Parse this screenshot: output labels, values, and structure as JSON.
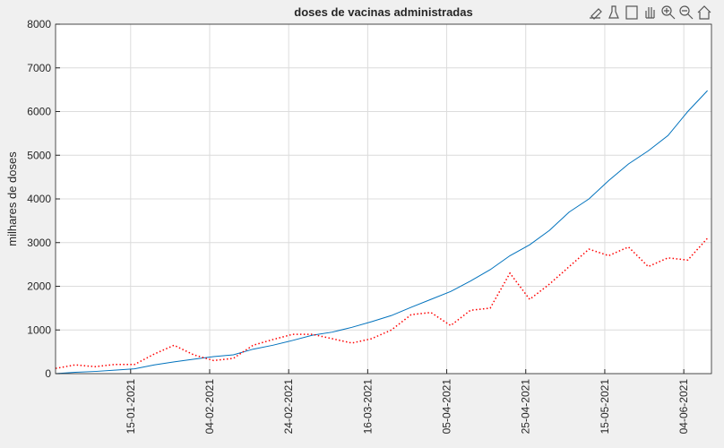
{
  "chart_data": {
    "type": "line",
    "title": "doses de vacinas administradas",
    "ylabel": "milhares de doses",
    "x": [
      "27-12-2020",
      "01-01-2021",
      "06-01-2021",
      "11-01-2021",
      "16-01-2021",
      "21-01-2021",
      "26-01-2021",
      "31-01-2021",
      "05-02-2021",
      "10-02-2021",
      "15-02-2021",
      "20-02-2021",
      "25-02-2021",
      "02-03-2021",
      "07-03-2021",
      "12-03-2021",
      "17-03-2021",
      "22-03-2021",
      "27-03-2021",
      "01-04-2021",
      "06-04-2021",
      "11-04-2021",
      "16-04-2021",
      "21-04-2021",
      "26-04-2021",
      "01-05-2021",
      "06-05-2021",
      "11-05-2021",
      "16-05-2021",
      "21-05-2021",
      "26-05-2021",
      "31-05-2021",
      "05-06-2021",
      "10-06-2021"
    ],
    "series": [
      {
        "color": "#0072bd",
        "dash": "solid",
        "values": [
          0,
          30,
          50,
          80,
          110,
          200,
          270,
          330,
          390,
          430,
          560,
          650,
          760,
          880,
          950,
          1060,
          1190,
          1330,
          1520,
          1700,
          1880,
          2120,
          2380,
          2700,
          2950,
          3280,
          3700,
          4000,
          4420,
          4800,
          5100,
          5450,
          6000,
          6480
        ]
      },
      {
        "color": "#ff0000",
        "dash": "dotted",
        "values": [
          120,
          200,
          160,
          210,
          210,
          450,
          650,
          430,
          300,
          350,
          650,
          780,
          900,
          900,
          800,
          700,
          800,
          1000,
          1350,
          1400,
          1100,
          1450,
          1500,
          2300,
          1700,
          2050,
          2450,
          2850,
          2700,
          2900,
          2450,
          2650,
          2600,
          3100
        ]
      }
    ],
    "xlim": [
      "27-12-2020",
      "11-06-2021"
    ],
    "xticks": [
      "15-01-2021",
      "04-02-2021",
      "24-02-2021",
      "16-03-2021",
      "05-04-2021",
      "25-04-2021",
      "15-05-2021",
      "04-06-2021"
    ],
    "ylim": [
      0,
      8000
    ],
    "yticks": [
      0,
      1000,
      2000,
      3000,
      4000,
      5000,
      6000,
      7000,
      8000
    ],
    "grid": true
  }
}
